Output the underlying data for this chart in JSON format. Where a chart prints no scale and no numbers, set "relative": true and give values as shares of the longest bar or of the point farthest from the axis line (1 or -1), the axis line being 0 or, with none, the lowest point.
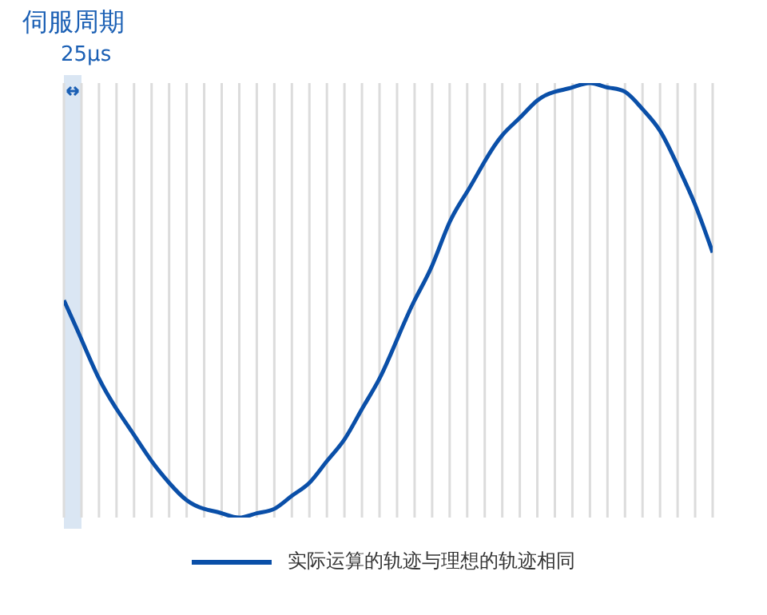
{
  "chart_data": {
    "type": "line",
    "title": "伺服周期",
    "relative": true,
    "grid": "x",
    "legend": "bottom",
    "categories": [
      null,
      null,
      null,
      null,
      null,
      null,
      null,
      null,
      null,
      null,
      null,
      null,
      null,
      null,
      null,
      null,
      null,
      null,
      null,
      null,
      null,
      null,
      null,
      null,
      null,
      null,
      null,
      null,
      null,
      null,
      null,
      null,
      null,
      null,
      null,
      null,
      null,
      null
    ],
    "series": [
      {
        "name": "实际运算的轨迹与理想的轨迹相同",
        "color": "#0a4fa8",
        "values": [
          0.5,
          0.41,
          0.32,
          0.25,
          0.19,
          0.13,
          0.08,
          0.04,
          0.02,
          0.01,
          0,
          0.01,
          0.02,
          0.05,
          0.08,
          0.13,
          0.18,
          0.25,
          0.32,
          0.41,
          0.5,
          0.58,
          0.68,
          0.75,
          0.82,
          0.88,
          0.92,
          0.96,
          0.98,
          0.99,
          1,
          0.99,
          0.98,
          0.94,
          0.89,
          0.81,
          0.72,
          0.61
        ]
      }
    ],
    "annotations": [
      "25μs"
    ]
  }
}
